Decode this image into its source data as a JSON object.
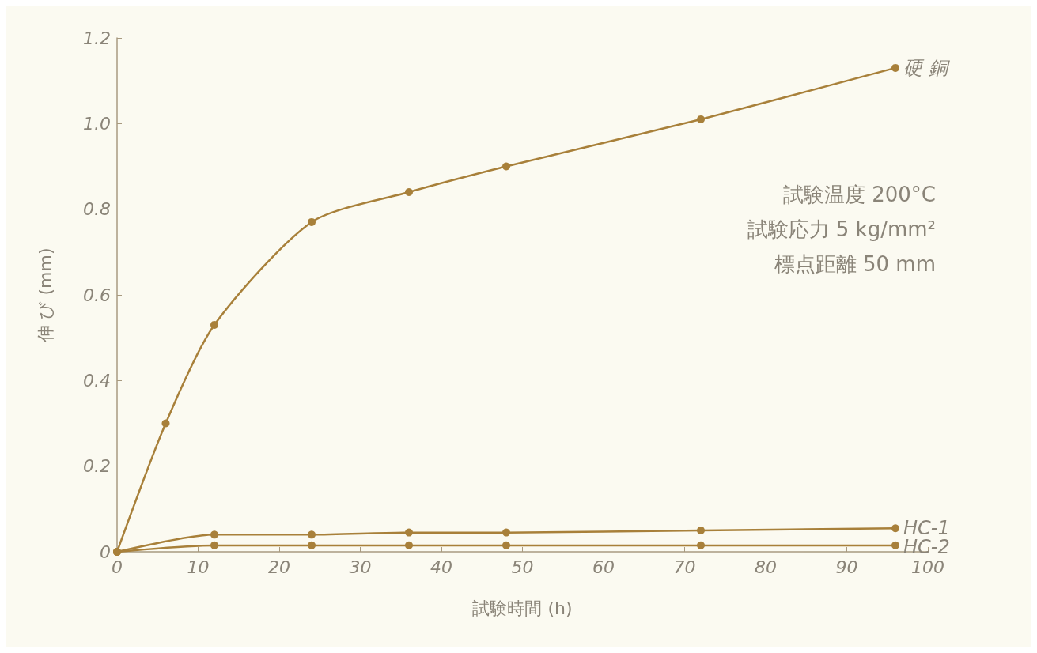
{
  "chart_data": {
    "type": "line",
    "xlabel": "試験時間 (h)",
    "ylabel": "伸 び (mm)",
    "series": [
      {
        "name": "硬 銅",
        "color": "#a8803a",
        "x": [
          0,
          6,
          12,
          24,
          36,
          48,
          72,
          96
        ],
        "values": [
          0,
          0.3,
          0.53,
          0.77,
          0.84,
          0.9,
          1.01,
          1.13
        ]
      },
      {
        "name": "HC-1",
        "color": "#a8803a",
        "x": [
          0,
          12,
          24,
          36,
          48,
          72,
          96
        ],
        "values": [
          0,
          0.04,
          0.04,
          0.045,
          0.045,
          0.05,
          0.055
        ]
      },
      {
        "name": "HC-2",
        "color": "#a8803a",
        "x": [
          0,
          12,
          24,
          36,
          48,
          72,
          96
        ],
        "values": [
          0,
          0.015,
          0.015,
          0.015,
          0.015,
          0.015,
          0.015
        ]
      }
    ],
    "annotations": [
      "試験温度 200°C",
      "試験応力 5 kg/mm²",
      "標点距離 50 mm"
    ],
    "xlim": [
      0,
      100
    ],
    "xticks": [
      0,
      10,
      20,
      30,
      40,
      50,
      60,
      70,
      80,
      90,
      100
    ],
    "ylim": [
      0,
      1.2
    ],
    "yticks": [
      0,
      0.2,
      0.4,
      0.6,
      0.8,
      {
        "value": 1,
        "label": "1.0"
      },
      1.2
    ],
    "grid": false,
    "legend": false,
    "marker": "circle",
    "line_style": "solid"
  }
}
